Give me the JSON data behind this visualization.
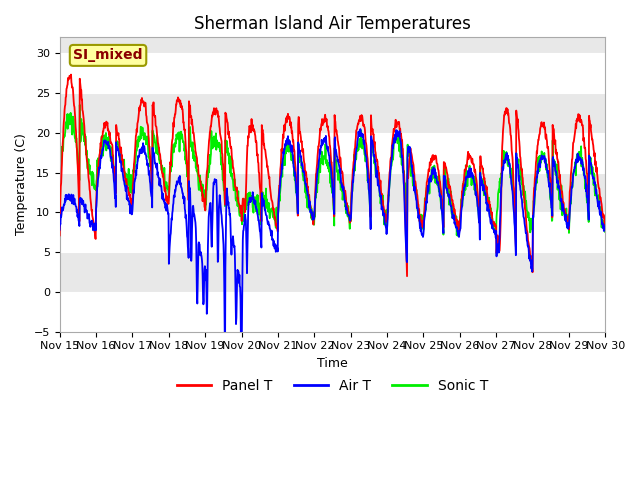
{
  "title": "Sherman Island Air Temperatures",
  "xlabel": "Time",
  "ylabel": "Temperature (C)",
  "ylim": [
    -5,
    32
  ],
  "yticks": [
    -5,
    0,
    5,
    10,
    15,
    20,
    25,
    30
  ],
  "xtick_labels": [
    "Nov 15",
    "Nov 16",
    "Nov 17",
    "Nov 18",
    "Nov 19",
    "Nov 20",
    "Nov 21",
    "Nov 22",
    "Nov 23",
    "Nov 24",
    "Nov 25",
    "Nov 26",
    "Nov 27",
    "Nov 28",
    "Nov 29",
    "Nov 30"
  ],
  "annotation_text": "SI_mixed",
  "annotation_color": "#8B0000",
  "annotation_bg": "#FFFFA0",
  "annotation_edge": "#999900",
  "inner_bg": "#E8E8E8",
  "band_color": "#D8D8D8",
  "panel_t_color": "#FF0000",
  "air_t_color": "#0000FF",
  "sonic_t_color": "#00EE00",
  "title_fontsize": 12,
  "axis_fontsize": 9,
  "tick_fontsize": 8,
  "legend_fontsize": 10,
  "line_width": 1.3,
  "grid_color": "#FFFFFF"
}
